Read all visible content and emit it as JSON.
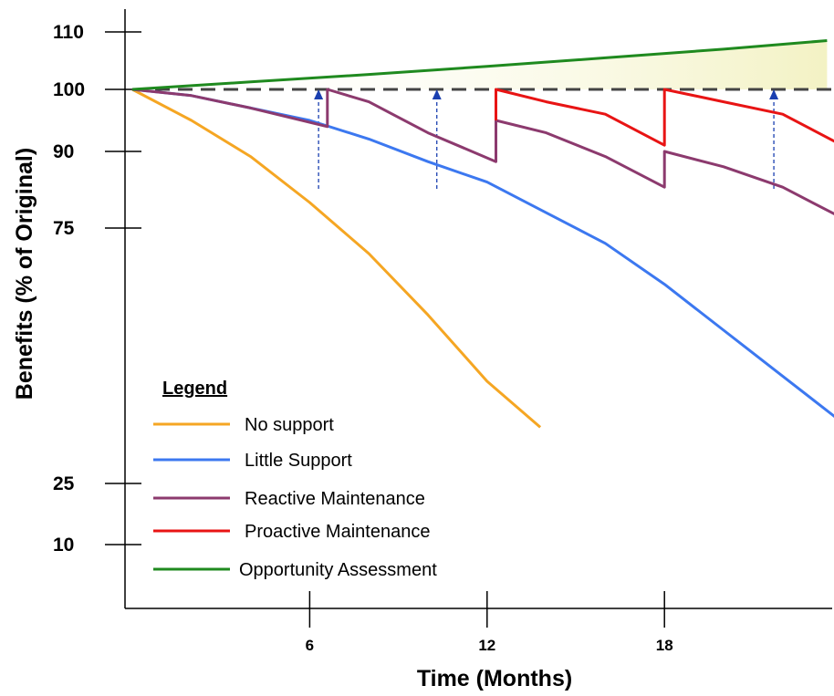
{
  "chart_data": {
    "type": "line",
    "xlabel": "Time (Months)",
    "ylabel": "Benefits (% of Original)",
    "xlim": [
      0,
      24
    ],
    "x_ticks": [
      6,
      12,
      18
    ],
    "y_ticks": [
      {
        "value": 110,
        "label": "110"
      },
      {
        "value": 100,
        "label": "100"
      },
      {
        "value": 90,
        "label": "90"
      },
      {
        "value": 75,
        "label": "75"
      },
      {
        "value": 25,
        "label": "25"
      },
      {
        "value": 10,
        "label": "10"
      }
    ],
    "reference_line": {
      "y": 100,
      "style": "dashed",
      "color": "#444444"
    },
    "legend": {
      "title": "Legend",
      "placement": "bottom-left"
    },
    "series": [
      {
        "name": "No support",
        "color": "#f5a623",
        "x": [
          0,
          2,
          4,
          6,
          8,
          10,
          12,
          13.8
        ],
        "y": [
          100,
          95,
          89,
          80,
          70,
          58,
          45,
          36
        ]
      },
      {
        "name": "Little Support",
        "color": "#3c78f0",
        "x": [
          0,
          2,
          4,
          6,
          8,
          10,
          12,
          14,
          16,
          18,
          20,
          22,
          24
        ],
        "y": [
          100,
          99,
          97,
          95,
          92,
          88,
          84,
          78,
          72,
          64,
          55,
          46,
          37
        ]
      },
      {
        "name": "Reactive Maintenance",
        "color": "#8c3a6e",
        "x": [
          0,
          2,
          4,
          6.6,
          6.6,
          8,
          10,
          12.3,
          12.3,
          14,
          16,
          18,
          18,
          20,
          22,
          24
        ],
        "y": [
          100,
          99,
          97,
          94,
          100,
          98,
          93,
          88,
          95,
          93,
          89,
          83,
          90,
          87,
          83,
          77
        ]
      },
      {
        "name": "Proactive Maintenance",
        "color": "#e81414",
        "x": [
          12.3,
          12.3,
          14,
          16,
          18,
          18,
          20,
          22,
          24
        ],
        "y": [
          95,
          100,
          98,
          96,
          91,
          100,
          98,
          96,
          91
        ]
      },
      {
        "name": "Opportunity Assessment",
        "color": "#1f8a1f",
        "x": [
          0,
          4,
          8,
          12,
          16,
          20,
          23.5
        ],
        "y": [
          100,
          101.3,
          102.6,
          104,
          105.5,
          107,
          108.5
        ]
      }
    ],
    "annotations": {
      "upward_arrows_x": [
        6.3,
        10.3,
        21.7
      ],
      "arrow_color": "#1a3fb0",
      "opportunity_fill_color": "#f4f3c9"
    }
  }
}
